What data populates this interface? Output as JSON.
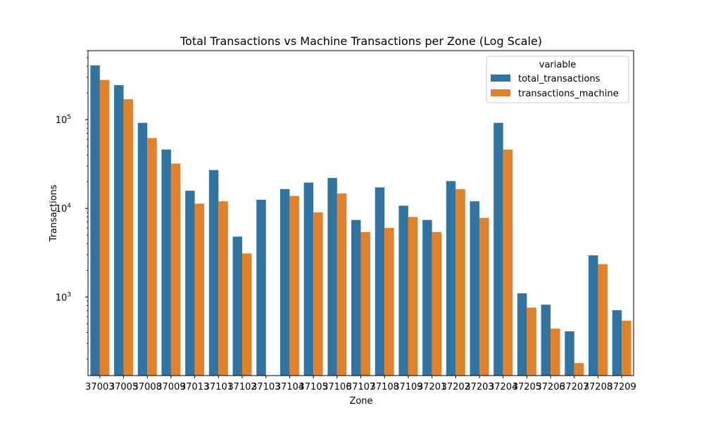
{
  "chart_data": {
    "type": "bar",
    "title": "Total Transactions vs Machine Transactions per Zone (Log Scale)",
    "xlabel": "Zone",
    "ylabel": "Transactions",
    "yscale": "log",
    "ylim": [
      130,
      600000
    ],
    "yticks": [
      {
        "value": 1000,
        "base": "10",
        "exp": "3"
      },
      {
        "value": 10000,
        "base": "10",
        "exp": "4"
      },
      {
        "value": 100000,
        "base": "10",
        "exp": "5"
      }
    ],
    "grid": false,
    "legend": {
      "title": "variable",
      "position": "top-right"
    },
    "categories": [
      "37003",
      "37005",
      "37008",
      "37009",
      "37013",
      "37101",
      "37102",
      "37103",
      "37104",
      "37105",
      "37106",
      "37107",
      "37108",
      "37109",
      "37201",
      "37202",
      "37203",
      "37204",
      "37205",
      "37206",
      "37207",
      "37208",
      "37209"
    ],
    "series": [
      {
        "name": "total_transactions",
        "color": "#3274a1",
        "values": [
          410000,
          245000,
          92000,
          46000,
          15800,
          27000,
          4800,
          12500,
          16500,
          19500,
          22000,
          7400,
          17200,
          10700,
          7400,
          20300,
          12000,
          92000,
          1100,
          820,
          410,
          2950,
          710
        ]
      },
      {
        "name": "transactions_machine",
        "color": "#e1812c",
        "values": [
          280000,
          170000,
          62000,
          32000,
          11300,
          12000,
          3100,
          null,
          13800,
          9000,
          14700,
          5400,
          6000,
          8000,
          5400,
          16500,
          7800,
          46000,
          760,
          440,
          180,
          2350,
          540
        ]
      }
    ]
  }
}
